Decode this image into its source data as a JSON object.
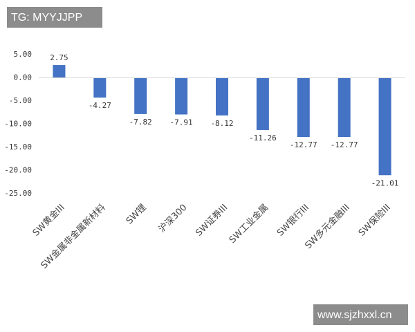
{
  "chart_data": {
    "type": "bar",
    "categories": [
      "SW黄金III",
      "SW金属非金属新材料",
      "SW锂",
      "沪深300",
      "SW证券III",
      "SW工业金属",
      "SW银行III",
      "SW多元金融III",
      "SW保险III"
    ],
    "values": [
      2.75,
      -4.27,
      -7.82,
      -7.91,
      -8.12,
      -11.26,
      -12.77,
      -12.77,
      -21.01
    ],
    "color": "#4472c4",
    "ylim": [
      -25,
      5
    ],
    "yticks": [
      {
        "value": 5,
        "label": "5.00"
      },
      {
        "value": 0,
        "label": "0.00"
      },
      {
        "value": -5,
        "label": "-5.00"
      },
      {
        "value": -10,
        "label": "-10.00"
      },
      {
        "value": -15,
        "label": "-15.00"
      },
      {
        "value": -20,
        "label": "-20.00"
      },
      {
        "value": -25,
        "label": "-25.00"
      }
    ],
    "grid": false
  },
  "watermarks": [
    "TG: MYYJJPP",
    "www.sjzhxxl.cn"
  ]
}
